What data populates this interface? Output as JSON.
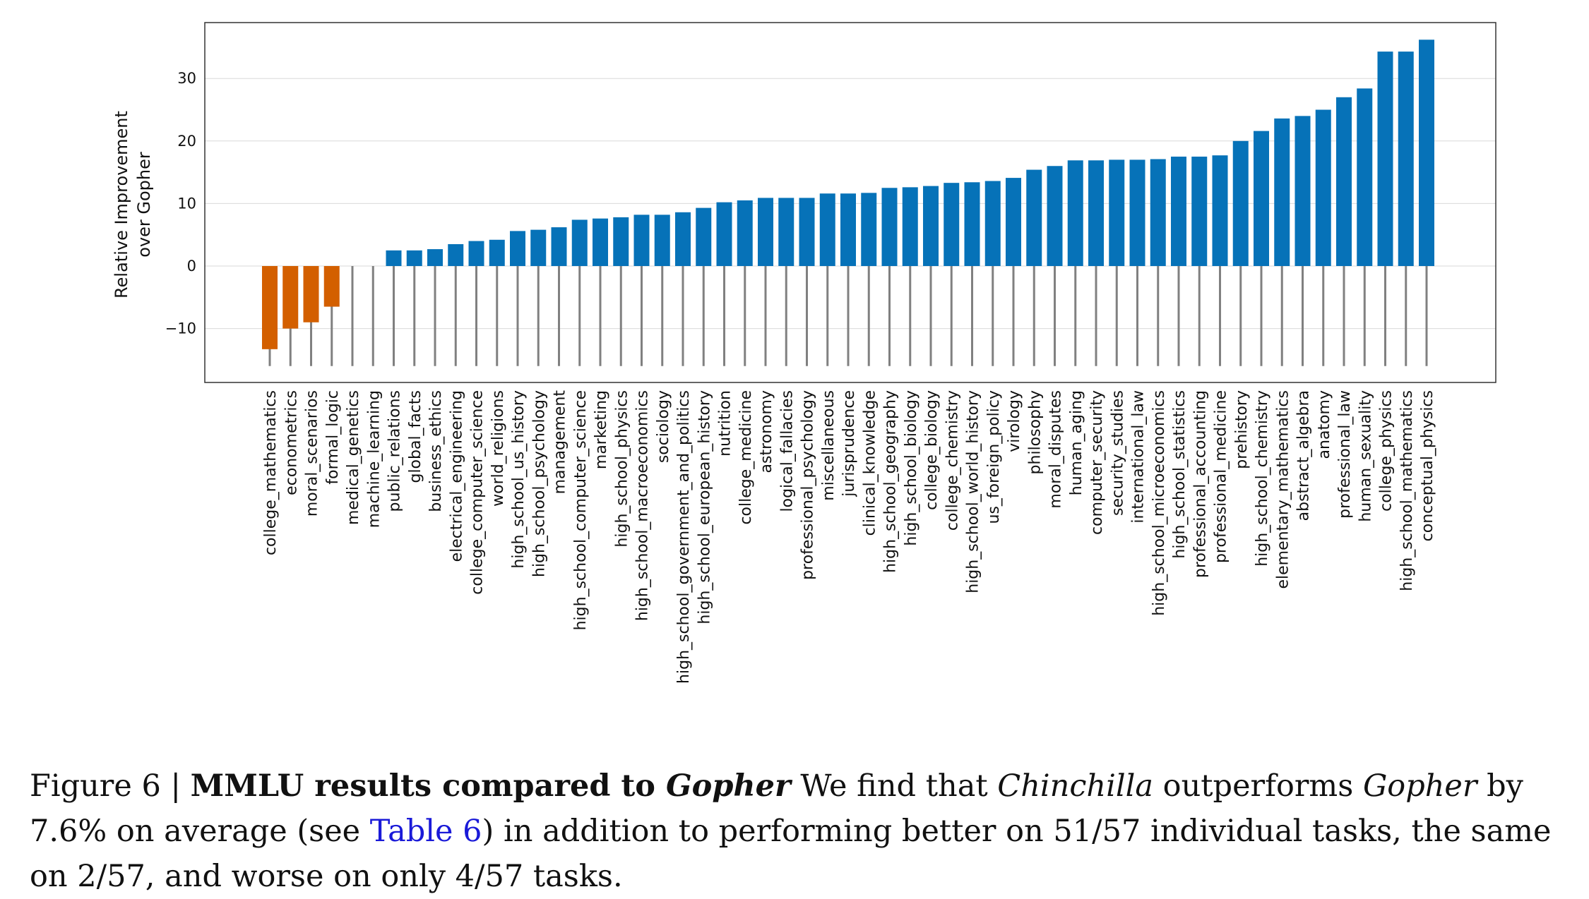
{
  "chart_data": {
    "type": "bar",
    "ylabel": [
      "Relative Improvement",
      "over Gopher"
    ],
    "ylim": [
      -18,
      39
    ],
    "yticks": [
      -10,
      0,
      10,
      20,
      30
    ],
    "ytick_labels": [
      "−10",
      "0",
      "10",
      "20",
      "30"
    ],
    "grid": true,
    "colors": {
      "negative": "#d35f00",
      "positive": "#0672b8",
      "stem": "#808080"
    },
    "categories": [
      "college_mathematics",
      "econometrics",
      "moral_scenarios",
      "formal_logic",
      "medical_genetics",
      "machine_learning",
      "public_relations",
      "global_facts",
      "business_ethics",
      "electrical_engineering",
      "college_computer_science",
      "world_religions",
      "high_school_us_history",
      "high_school_psychology",
      "management",
      "high_school_computer_science",
      "marketing",
      "high_school_physics",
      "high_school_macroeconomics",
      "sociology",
      "high_school_government_and_politics",
      "high_school_european_history",
      "nutrition",
      "college_medicine",
      "astronomy",
      "logical_fallacies",
      "professional_psychology",
      "miscellaneous",
      "jurisprudence",
      "clinical_knowledge",
      "high_school_geography",
      "high_school_biology",
      "college_biology",
      "college_chemistry",
      "high_school_world_history",
      "us_foreign_policy",
      "virology",
      "philosophy",
      "moral_disputes",
      "human_aging",
      "computer_security",
      "security_studies",
      "international_law",
      "high_school_microeconomics",
      "high_school_statistics",
      "professional_accounting",
      "professional_medicine",
      "prehistory",
      "high_school_chemistry",
      "elementary_mathematics",
      "abstract_algebra",
      "anatomy",
      "professional_law",
      "human_sexuality",
      "college_physics",
      "high_school_mathematics",
      "conceptual_physics"
    ],
    "values": [
      -13.3,
      -10.0,
      -9.0,
      -6.5,
      0.0,
      0.0,
      2.5,
      2.5,
      2.7,
      3.5,
      4.0,
      4.2,
      5.6,
      5.8,
      6.2,
      7.4,
      7.6,
      7.8,
      8.2,
      8.2,
      8.6,
      9.3,
      10.2,
      10.5,
      10.9,
      10.9,
      10.9,
      11.6,
      11.6,
      11.7,
      12.5,
      12.6,
      12.8,
      13.3,
      13.4,
      13.6,
      14.1,
      15.4,
      16.0,
      16.9,
      16.9,
      17.0,
      17.0,
      17.1,
      17.5,
      17.5,
      17.7,
      20.0,
      21.6,
      23.6,
      24.0,
      25.0,
      27.0,
      28.4,
      34.3,
      34.3,
      36.2
    ],
    "stem_bottom": -16
  },
  "caption": {
    "prefix": "Figure 6 | ",
    "bold_title": "MMLU results compared to ",
    "bold_title_italic": "Gopher",
    "text1": " We find that ",
    "italic1": "Chinchilla",
    "text2": " outperforms ",
    "italic2": "Gopher",
    "text3": " by 7.6% on average (see ",
    "link": "Table 6",
    "text4": ") in addition to performing better on 51/57 individual tasks, the same on 2/57, and worse on only 4/57 tasks."
  }
}
